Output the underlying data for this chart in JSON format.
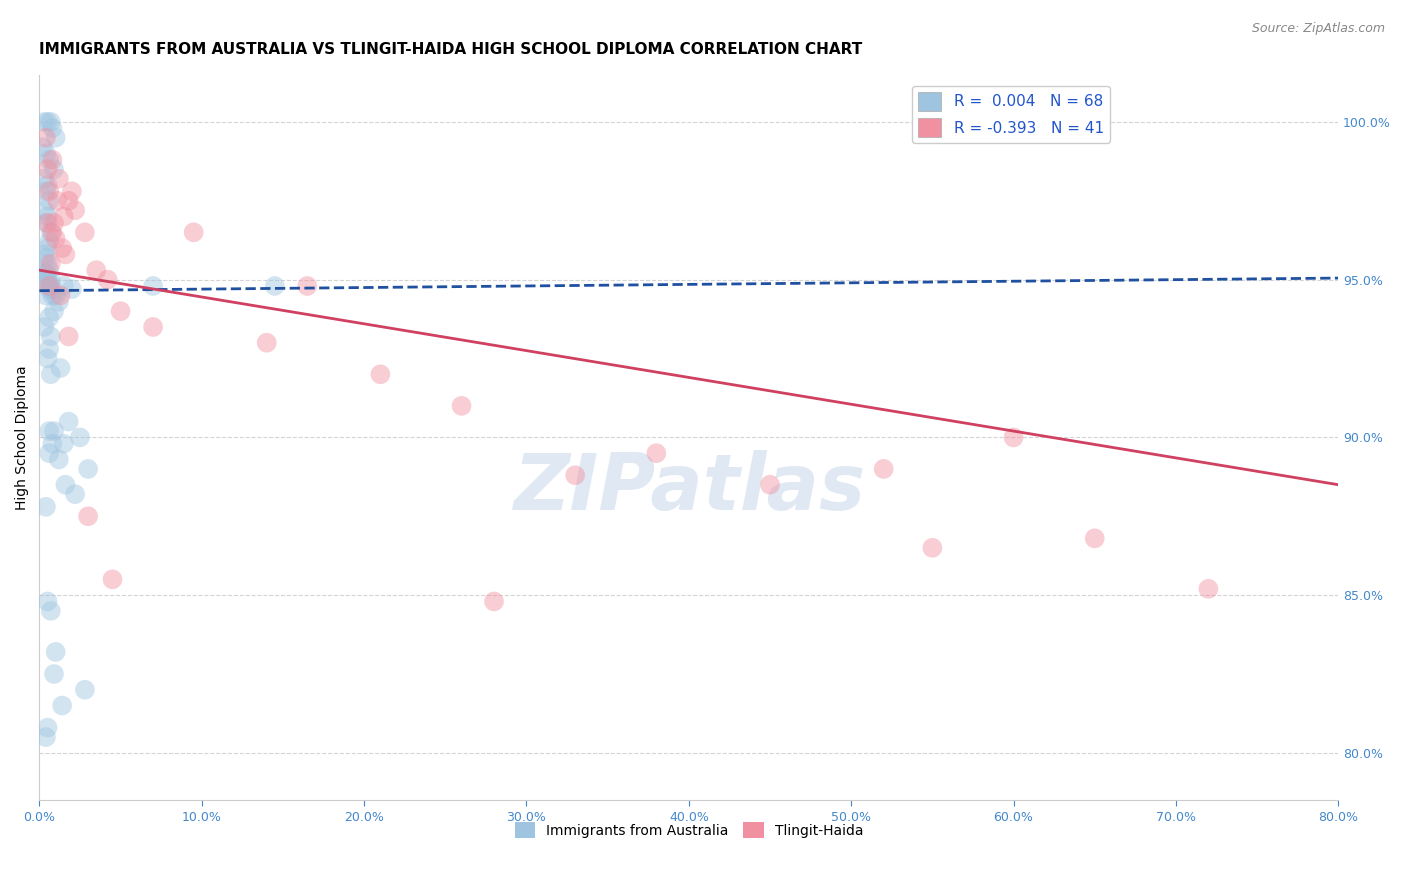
{
  "title": "IMMIGRANTS FROM AUSTRALIA VS TLINGIT-HAIDA HIGH SCHOOL DIPLOMA CORRELATION CHART",
  "source": "Source: ZipAtlas.com",
  "ylabel": "High School Diploma",
  "x_tick_labels": [
    "0.0%",
    "10.0%",
    "20.0%",
    "30.0%",
    "40.0%",
    "50.0%",
    "60.0%",
    "70.0%",
    "80.0%"
  ],
  "y_tick_labels": [
    "80.0%",
    "85.0%",
    "90.0%",
    "95.0%",
    "100.0%"
  ],
  "xlim": [
    0.0,
    80.0
  ],
  "ylim": [
    78.5,
    101.5
  ],
  "legend_entries": [
    {
      "label": "R =  0.004   N = 68",
      "color": "#aac4e0"
    },
    {
      "label": "R = -0.393   N = 41",
      "color": "#f4a0b5"
    }
  ],
  "legend_bottom": [
    "Immigrants from Australia",
    "Tlingit-Haida"
  ],
  "watermark": "ZIPatlas",
  "blue_scatter_x": [
    0.3,
    0.5,
    0.7,
    0.8,
    1.0,
    0.2,
    0.4,
    0.6,
    0.9,
    0.3,
    0.5,
    0.4,
    0.6,
    0.3,
    0.5,
    0.4,
    0.7,
    0.6,
    0.5,
    0.3,
    0.4,
    0.5,
    0.6,
    0.4,
    0.3,
    0.5,
    0.7,
    0.6,
    0.4,
    0.8,
    1.2,
    0.9,
    0.6,
    0.4,
    0.7,
    1.5,
    0.5,
    0.8,
    1.0,
    0.6,
    0.5,
    1.3,
    0.7,
    2.0,
    1.8,
    0.9,
    2.5,
    1.5,
    0.6,
    1.2,
    3.0,
    0.8,
    1.6,
    2.2,
    0.5,
    0.7,
    1.0,
    0.9,
    2.8,
    1.4,
    0.6,
    0.4,
    7.0,
    0.5,
    0.3,
    0.7,
    0.4,
    14.5
  ],
  "blue_scatter_y": [
    100.0,
    100.0,
    100.0,
    99.8,
    99.5,
    99.2,
    99.0,
    98.8,
    98.5,
    98.2,
    98.0,
    97.8,
    97.5,
    97.2,
    97.0,
    96.8,
    96.5,
    96.2,
    96.0,
    95.8,
    95.7,
    95.5,
    95.3,
    95.2,
    95.0,
    95.0,
    94.8,
    94.7,
    94.5,
    94.5,
    94.3,
    94.0,
    93.8,
    95.2,
    95.0,
    94.8,
    95.0,
    94.7,
    94.5,
    92.8,
    92.5,
    92.2,
    92.0,
    94.7,
    90.5,
    90.2,
    90.0,
    89.8,
    89.5,
    89.3,
    89.0,
    89.8,
    88.5,
    88.2,
    84.8,
    84.5,
    83.2,
    82.5,
    82.0,
    81.5,
    90.2,
    87.8,
    94.8,
    80.8,
    93.5,
    93.2,
    80.5,
    94.8
  ],
  "pink_scatter_x": [
    0.4,
    0.8,
    1.2,
    0.6,
    1.8,
    2.2,
    1.5,
    0.9,
    2.8,
    1.0,
    0.5,
    1.4,
    1.6,
    0.7,
    3.5,
    4.2,
    2.0,
    1.3,
    0.8,
    5.0,
    7.0,
    9.5,
    0.6,
    1.1,
    14.0,
    16.5,
    21.0,
    26.0,
    33.0,
    38.0,
    45.0,
    52.0,
    60.0,
    65.0,
    72.0,
    3.0,
    0.5,
    1.8,
    4.5,
    28.0,
    55.0
  ],
  "pink_scatter_y": [
    99.5,
    98.8,
    98.2,
    97.8,
    97.5,
    97.2,
    97.0,
    96.8,
    96.5,
    96.3,
    98.5,
    96.0,
    95.8,
    95.5,
    95.3,
    95.0,
    97.8,
    94.5,
    96.5,
    94.0,
    93.5,
    96.5,
    94.8,
    97.5,
    93.0,
    94.8,
    92.0,
    91.0,
    88.8,
    89.5,
    88.5,
    89.0,
    90.0,
    86.8,
    85.2,
    87.5,
    96.8,
    93.2,
    85.5,
    84.8,
    86.5
  ],
  "blue_line_x": [
    0.0,
    80.0
  ],
  "blue_line_y": [
    94.65,
    95.05
  ],
  "pink_line_x": [
    0.0,
    80.0
  ],
  "pink_line_y": [
    95.3,
    88.5
  ],
  "blue_dot_color": "#9ec4e0",
  "pink_dot_color": "#f090a0",
  "blue_line_color": "#2050a0",
  "pink_line_color": "#d04060",
  "grid_color": "#d0d0d0",
  "title_fontsize": 11,
  "axis_label_fontsize": 10,
  "tick_fontsize": 9,
  "dot_size": 200,
  "dot_alpha": 0.45
}
